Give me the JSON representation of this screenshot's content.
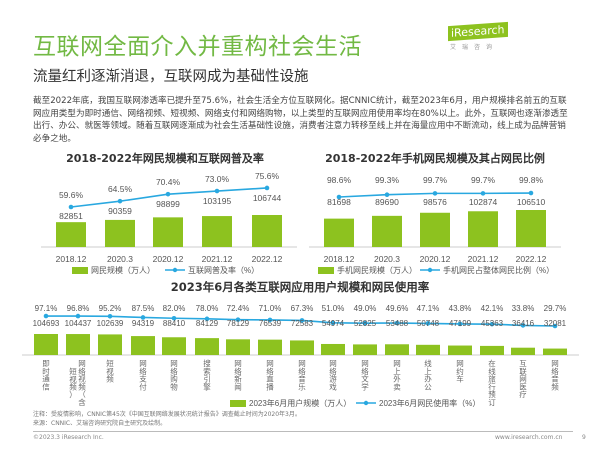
{
  "header": {
    "title": "互联网全面介入并重构社会生活",
    "subtitle": "流量红利逐渐消退，互联网成为基础性设施",
    "logo_text": "iResearch",
    "logo_sub": "艾瑞咨询"
  },
  "paragraph": "截至2022年底，我国互联网渗透率已提升至75.6%，社会生活全方位互联网化。据CNNIC统计，截至2023年6月，用户规模排名前五的互联网应用类型为即时通信、网络视频、短视频、网络支付和网络购物，以上类型的互联网应用使用率均在80%以上。此外，互联网也逐渐渗透至出行、办公、就医等领域。随着互联网逐渐成为社会生活基础性设施，消费者注意力转移至线上并在海量应用中不断流动，线上成为品牌营销必争之地。",
  "colors": {
    "bar": "#8dc21f",
    "line": "#29a8e0",
    "title": "#72b944"
  },
  "chart_data": [
    {
      "type": "bar+line",
      "title": "2018-2022年网民规模和互联网普及率",
      "categories": [
        "2018.12",
        "2020.3",
        "2020.12",
        "2021.12",
        "2022.12"
      ],
      "series": [
        {
          "name": "网民规模（万人）",
          "type": "bar",
          "values": [
            82851,
            90359,
            98899,
            103195,
            106744
          ]
        },
        {
          "name": "互联网普及率（%）",
          "type": "line",
          "values": [
            59.6,
            64.5,
            70.4,
            73.0,
            75.6
          ],
          "labels": [
            "59.6%",
            "64.5%",
            "70.4%",
            "73.0%",
            "75.6%"
          ]
        }
      ],
      "legend": "bottom"
    },
    {
      "type": "bar+line",
      "title": "2018-2022年手机网民规模及其占网民比例",
      "categories": [
        "2018.12",
        "2020.3",
        "2020.12",
        "2021.12",
        "2022.12"
      ],
      "series": [
        {
          "name": "手机网民规模（万人）",
          "type": "bar",
          "values": [
            81698,
            89690,
            98576,
            102874,
            106510
          ]
        },
        {
          "name": "手机网民占整体网民比例（%）",
          "type": "line",
          "values": [
            98.6,
            99.3,
            99.7,
            99.7,
            99.8
          ],
          "labels": [
            "98.6%",
            "99.3%",
            "99.7%",
            "99.7%",
            "99.8%"
          ]
        }
      ],
      "legend": "bottom"
    },
    {
      "type": "bar+line",
      "title": "2023年6月各类互联网应用用户规模和网民使用率",
      "categories": [
        "即时通信",
        "网络视频（含短视频）",
        "短视频",
        "网络支付",
        "网络购物",
        "搜索引擎",
        "网络新闻",
        "网络直播",
        "网络音乐",
        "网络游戏",
        "网络文学",
        "网上外卖",
        "线上办公",
        "网约车",
        "在线旅行预订",
        "互联网医疗",
        "网络音频"
      ],
      "series": [
        {
          "name": "2023年6月用户规模（万人）",
          "type": "bar",
          "values": [
            104693,
            104437,
            102639,
            94319,
            88410,
            84129,
            78129,
            76539,
            72583,
            54974,
            52825,
            53488,
            50748,
            47199,
            45363,
            36416,
            32081
          ]
        },
        {
          "name": "2023年6月网民使用率（%）",
          "type": "line",
          "values": [
            97.1,
            96.8,
            95.2,
            87.5,
            82.0,
            78.0,
            72.4,
            71.0,
            67.3,
            51.0,
            49.0,
            49.6,
            47.1,
            43.8,
            42.1,
            33.8,
            29.7
          ],
          "labels": [
            "97.1%",
            "96.8%",
            "95.2%",
            "87.5%",
            "82.0%",
            "78.0%",
            "72.4%",
            "71.0%",
            "67.3%",
            "51.0%",
            "49.0%",
            "49.6%",
            "47.1%",
            "43.8%",
            "42.1%",
            "33.8%",
            "29.7%"
          ]
        }
      ],
      "legend": "bottom"
    }
  ],
  "notes": {
    "note": "注释：受疫情影响，CNNIC第45次《中国互联网络发展状况统计报告》调查截止时间为2020年3月。",
    "source": "来源：CNNIC、艾瑞咨询研究院自主研究及绘制。"
  },
  "footer": {
    "copyright": "©2023.3 iResearch Inc.",
    "url": "www.iresearch.com.cn",
    "page": "9"
  }
}
